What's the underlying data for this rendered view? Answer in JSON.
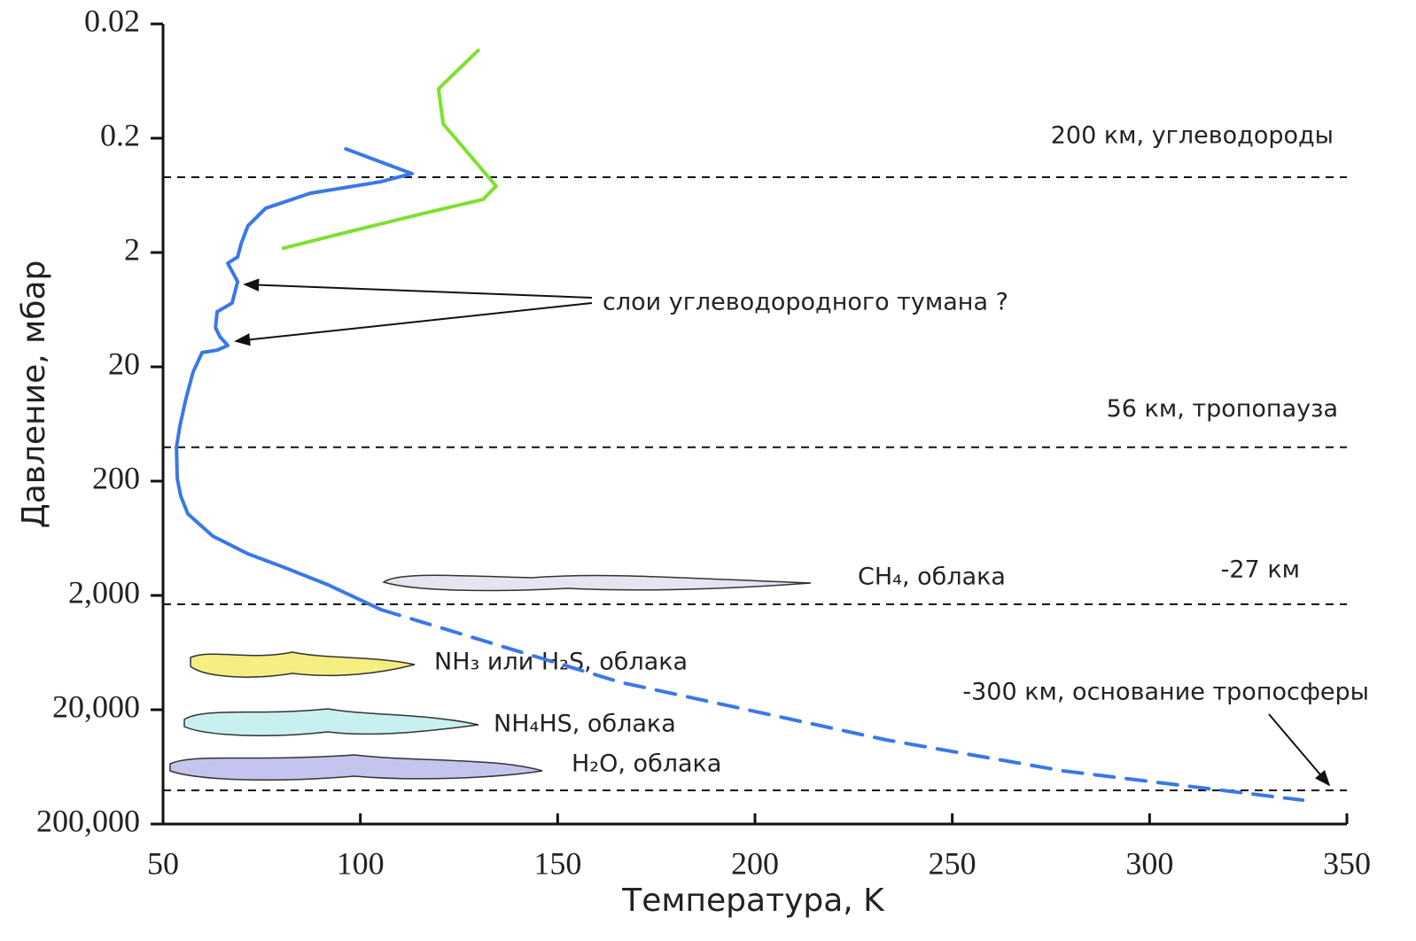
{
  "chart_data": {
    "type": "line",
    "xlabel": "Температура, K",
    "ylabel": "Давление, мбар",
    "xlim": [
      50,
      350
    ],
    "ylim": [
      0.02,
      200000
    ],
    "y_log": true,
    "y_inverted": true,
    "xticks": [
      50,
      100,
      150,
      200,
      250,
      300,
      350
    ],
    "yticks": [
      0.02,
      0.2,
      2,
      20,
      200,
      {
        "value": 2000,
        "label": "2,000"
      },
      {
        "value": 20000,
        "label": "20,000"
      },
      {
        "value": 200000,
        "label": "200,000"
      }
    ],
    "series": [
      {
        "color": "#3a78e8",
        "style": "solid",
        "x": [
          96.3,
          113.1,
          105.2,
          87.3,
          76.0,
          71.5,
          69.8,
          68.9,
          66.4,
          68.9,
          67.5,
          63.7,
          63.3,
          64.4,
          66.4,
          63.7,
          59.9,
          57.6,
          55.8,
          54.3,
          53.4,
          53.6,
          54.5,
          56.3,
          62.6,
          71.5,
          80.5,
          91.8,
          105.2
        ],
        "values": [
          0.248,
          0.408,
          0.48,
          0.606,
          0.82,
          1.17,
          1.67,
          2.19,
          2.48,
          3.6,
          5.53,
          6.6,
          9.1,
          10.9,
          13.0,
          14.3,
          15.0,
          22.3,
          38,
          65,
          101,
          190,
          271,
          387,
          605,
          865,
          1130,
          1614,
          2660
        ]
      },
      {
        "color": "#3a78e8",
        "style": "dashed",
        "x": [
          105.2,
          165.9,
          233.2,
          278.2,
          338.8
        ],
        "values": [
          2660,
          11500,
          36700,
          68600,
          123600
        ]
      },
      {
        "color": "#7ee030",
        "style": "solid",
        "x": [
          129.9,
          119.8,
          121.0,
          127.7,
          134.4,
          131.1,
          116.5,
          98.5,
          80.5
        ],
        "values": [
          0.034,
          0.074,
          0.15,
          0.28,
          0.525,
          0.686,
          0.9,
          1.28,
          1.83
        ]
      }
    ],
    "reference_lines": [
      {
        "value": 0.439,
        "label": "200 км, углеводороды"
      },
      {
        "value": 101,
        "label": "56 км, тропопауза"
      },
      {
        "value": 2390,
        "label": "-27 км"
      },
      {
        "value": 101400,
        "label": "-300 км, основание тропосферы"
      }
    ],
    "clouds": [
      "CH₄, облака",
      "NH₃ или H₂S, облака",
      "NH₄HS, облака",
      "H₂O, облака"
    ],
    "annotation": "слои углеводородного тумана ?"
  }
}
